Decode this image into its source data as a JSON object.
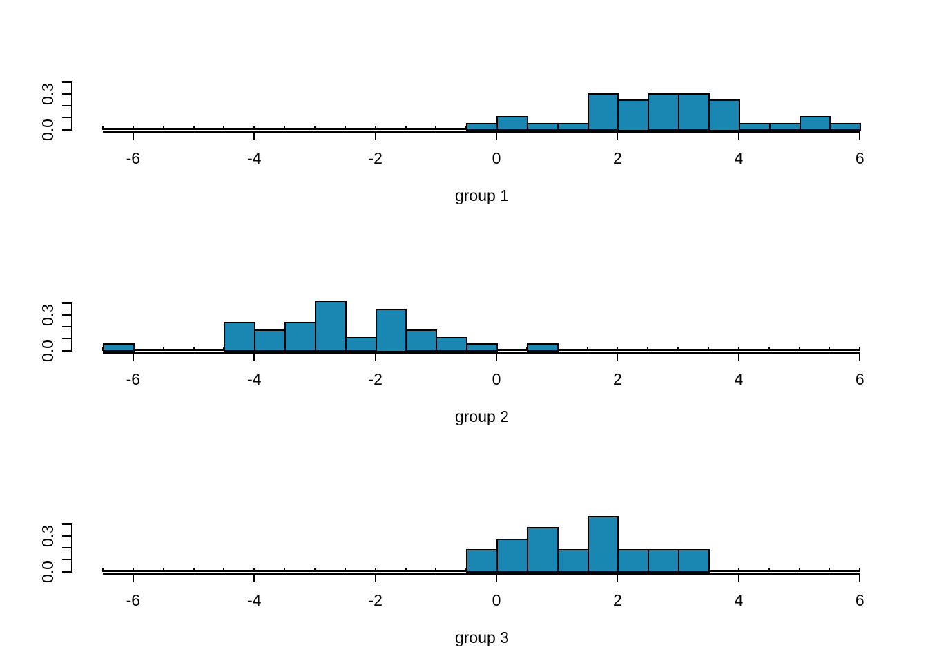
{
  "figure": {
    "background": "#ffffff",
    "bar_fill": "#1a87b2",
    "bar_border": "#000000",
    "axis_color": "#000000",
    "text_color": "#000000"
  },
  "chart_data": [
    {
      "type": "bar",
      "variant": "histogram-density",
      "xlabel": "group 1",
      "xlim": [
        -6.5,
        6
      ],
      "ylim": [
        0,
        0.4
      ],
      "bin_width": 0.5,
      "grid": false,
      "legend": null,
      "x_ticks": [
        -6,
        -4,
        -2,
        0,
        2,
        4,
        6
      ],
      "x_tick_labels": [
        "-6",
        "-4",
        "-2",
        "0",
        "2",
        "4",
        "6"
      ],
      "y_ticks": [
        0,
        0.1,
        0.2,
        0.3,
        0.4
      ],
      "y_tick_labels": [
        {
          "value": 0,
          "label": "0.0"
        },
        {
          "value": 0.3,
          "label": "0.3"
        }
      ],
      "bars": [
        {
          "from": -0.5,
          "to": 0.0,
          "density": 0.055
        },
        {
          "from": 0.0,
          "to": 0.5,
          "density": 0.115
        },
        {
          "from": 0.5,
          "to": 1.0,
          "density": 0.055
        },
        {
          "from": 1.0,
          "to": 1.5,
          "density": 0.055
        },
        {
          "from": 1.5,
          "to": 2.0,
          "density": 0.305
        },
        {
          "from": 2.0,
          "to": 2.5,
          "density": 0.25
        },
        {
          "from": 2.5,
          "to": 3.0,
          "density": 0.305
        },
        {
          "from": 3.0,
          "to": 3.5,
          "density": 0.305
        },
        {
          "from": 3.5,
          "to": 4.0,
          "density": 0.25
        },
        {
          "from": 4.0,
          "to": 4.5,
          "density": 0.055
        },
        {
          "from": 4.5,
          "to": 5.0,
          "density": 0.055
        },
        {
          "from": 5.0,
          "to": 5.5,
          "density": 0.115
        },
        {
          "from": 5.5,
          "to": 6.0,
          "density": 0.055
        }
      ]
    },
    {
      "type": "bar",
      "variant": "histogram-density",
      "xlabel": "group 2",
      "xlim": [
        -6.5,
        6
      ],
      "ylim": [
        0,
        0.4
      ],
      "bin_width": 0.5,
      "grid": false,
      "legend": null,
      "x_ticks": [
        -6,
        -4,
        -2,
        0,
        2,
        4,
        6
      ],
      "x_tick_labels": [
        "-6",
        "-4",
        "-2",
        "0",
        "2",
        "4",
        "6"
      ],
      "y_ticks": [
        0,
        0.1,
        0.2,
        0.3,
        0.4
      ],
      "y_tick_labels": [
        {
          "value": 0,
          "label": "0.0"
        },
        {
          "value": 0.3,
          "label": "0.3"
        }
      ],
      "bars": [
        {
          "from": -6.5,
          "to": -6.0,
          "density": 0.058
        },
        {
          "from": -4.5,
          "to": -4.0,
          "density": 0.238
        },
        {
          "from": -4.0,
          "to": -3.5,
          "density": 0.177
        },
        {
          "from": -3.5,
          "to": -3.0,
          "density": 0.238
        },
        {
          "from": -3.0,
          "to": -2.5,
          "density": 0.417
        },
        {
          "from": -2.5,
          "to": -2.0,
          "density": 0.113
        },
        {
          "from": -2.0,
          "to": -1.5,
          "density": 0.35
        },
        {
          "from": -1.5,
          "to": -1.0,
          "density": 0.177
        },
        {
          "from": -1.0,
          "to": -0.5,
          "density": 0.113
        },
        {
          "from": -0.5,
          "to": 0.0,
          "density": 0.058
        },
        {
          "from": 0.5,
          "to": 1.0,
          "density": 0.058
        }
      ]
    },
    {
      "type": "bar",
      "variant": "histogram-density",
      "xlabel": "group 3",
      "xlim": [
        -6.5,
        6
      ],
      "ylim": [
        0,
        0.4
      ],
      "bin_width": 0.5,
      "grid": false,
      "legend": null,
      "x_ticks": [
        -6,
        -4,
        -2,
        0,
        2,
        4,
        6
      ],
      "x_tick_labels": [
        "-6",
        "-4",
        "-2",
        "0",
        "2",
        "4",
        "6"
      ],
      "y_ticks": [
        0,
        0.1,
        0.2,
        0.3,
        0.4
      ],
      "y_tick_labels": [
        {
          "value": 0,
          "label": "0.0"
        },
        {
          "value": 0.3,
          "label": "0.3"
        }
      ],
      "bars": [
        {
          "from": -0.5,
          "to": 0.0,
          "density": 0.186
        },
        {
          "from": 0.0,
          "to": 0.5,
          "density": 0.277
        },
        {
          "from": 0.5,
          "to": 1.0,
          "density": 0.373
        },
        {
          "from": 1.0,
          "to": 1.5,
          "density": 0.186
        },
        {
          "from": 1.5,
          "to": 2.0,
          "density": 0.466
        },
        {
          "from": 2.0,
          "to": 2.5,
          "density": 0.186
        },
        {
          "from": 2.5,
          "to": 3.0,
          "density": 0.186
        },
        {
          "from": 3.0,
          "to": 3.5,
          "density": 0.186
        }
      ]
    }
  ]
}
